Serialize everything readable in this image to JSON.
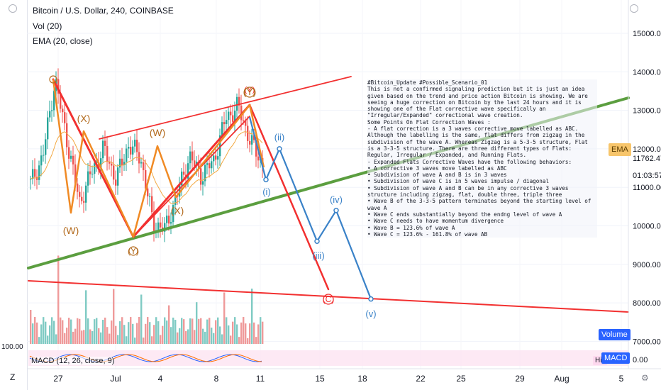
{
  "header": {
    "title": "Bitcoin / U.S. Dollar, 240, COINBASE",
    "vol": "Vol (20)",
    "ema": "EMA (20, close)"
  },
  "badges": {
    "ema": "EMA",
    "volume": "Volume",
    "macd": "MACD",
    "hist": "His",
    "macd_legend": "MACD (12, 26, close, 9)"
  },
  "bottom": {
    "z": "Z"
  },
  "note": {
    "lines": [
      "#Bitcoin_Update #Possible_Scenario_01",
      "This is not a confirmed signaling prediction but it is just an idea given based on the trend and price action Bitcoin is showing. We are seeing a huge correction on Bitcoin by the last 24 hours and it is showing one of the Flat corrective wave specifically an \"Irregular/Expanded\" correctional wave creation.",
      "Some Points On Flat Correction Waves :",
      "- A flat correction is a 3 waves corrective move labelled as ABC. Although the labelling is the same, flat differs from zigzag in the subdivision of the wave A. Whereas Zigzag is a 5-3-5 structure, Flat is a 3-3-5 structure. There are three different types of Flats: Regular, Irregular / Expanded, and Running Flats.",
      "- Expanded Flats Corrective Waves have the following behaviors:",
      "• A corrective 3 waves move labelled as ABC",
      "• Subdivision of wave A and B is in 3 waves",
      "• Subdivision of wave C is in 5 waves impulse / diagonal",
      "• Subdivision of wave A and B can be in any corrective 3 waves structure including zigzag, flat, double three, triple three",
      "• Wave B of the 3-3-5 pattern terminates beyond the starting level of wave A",
      "• Wave C ends substantially beyond the endng level of wave A",
      "• Wave C needs to have momentum divergence",
      "• Wave B = 123.6% of wave A",
      "• Wave C = 123.6% - 161.8% of wave AB"
    ]
  },
  "wave_labels": {
    "orange": [
      "(X)",
      "(W)",
      "(W)",
      "(X)",
      "(Y)",
      "(Y)"
    ],
    "red": [
      "(Y)",
      "(C)"
    ],
    "blue": [
      "(i)",
      "(ii)",
      "(iii)",
      "(iv)",
      "(v)"
    ]
  },
  "colors": {
    "bull": "#26a69a",
    "bear": "#ef5350",
    "ema": "#f2a740",
    "red_line": "#f23030",
    "green_line": "#5b9e3f",
    "blue_path": "#3a82c8",
    "orange_wave": "#f08a24",
    "label_brown": "#b36b1e"
  },
  "chart_data": {
    "type": "candlestick",
    "title": "Bitcoin / U.S. Dollar, 240, COINBASE",
    "y_ticks": [
      15000,
      14000,
      13000,
      12000,
      11000,
      10000,
      9000,
      8000,
      7000
    ],
    "y_tick_labels": [
      "15000.00",
      "14000.00",
      "13000.00",
      "12000.00",
      "11000.00",
      "10000.00",
      "9000.00",
      "8000.00",
      "7000.00"
    ],
    "price_label": "11762.47",
    "countdown": "01:03:57",
    "x_labels": [
      "27",
      "Jul",
      "4",
      "8",
      "11",
      "15",
      "18",
      "22",
      "25",
      "29",
      "Aug",
      "5"
    ],
    "ohlc_close_approx": [
      11100,
      11800,
      13800,
      12200,
      10600,
      11400,
      12000,
      11200,
      12100,
      11800,
      10100,
      9900,
      10800,
      11800,
      11300,
      11700,
      12800,
      13100,
      12200,
      11600
    ],
    "macd_axis_labels": [
      "100.00",
      "0.00"
    ],
    "blue_projection": [
      {
        "x": "Jul 11",
        "y": 11200,
        "label": "(i)"
      },
      {
        "x": "Jul 12",
        "y": 12000,
        "label": "(ii)"
      },
      {
        "x": "Jul 15",
        "y": 9600,
        "label": "(iii)"
      },
      {
        "x": "Jul 16",
        "y": 10400,
        "label": "(iv)"
      },
      {
        "x": "Jul 19",
        "y": 8100,
        "label": "(v)"
      }
    ]
  }
}
